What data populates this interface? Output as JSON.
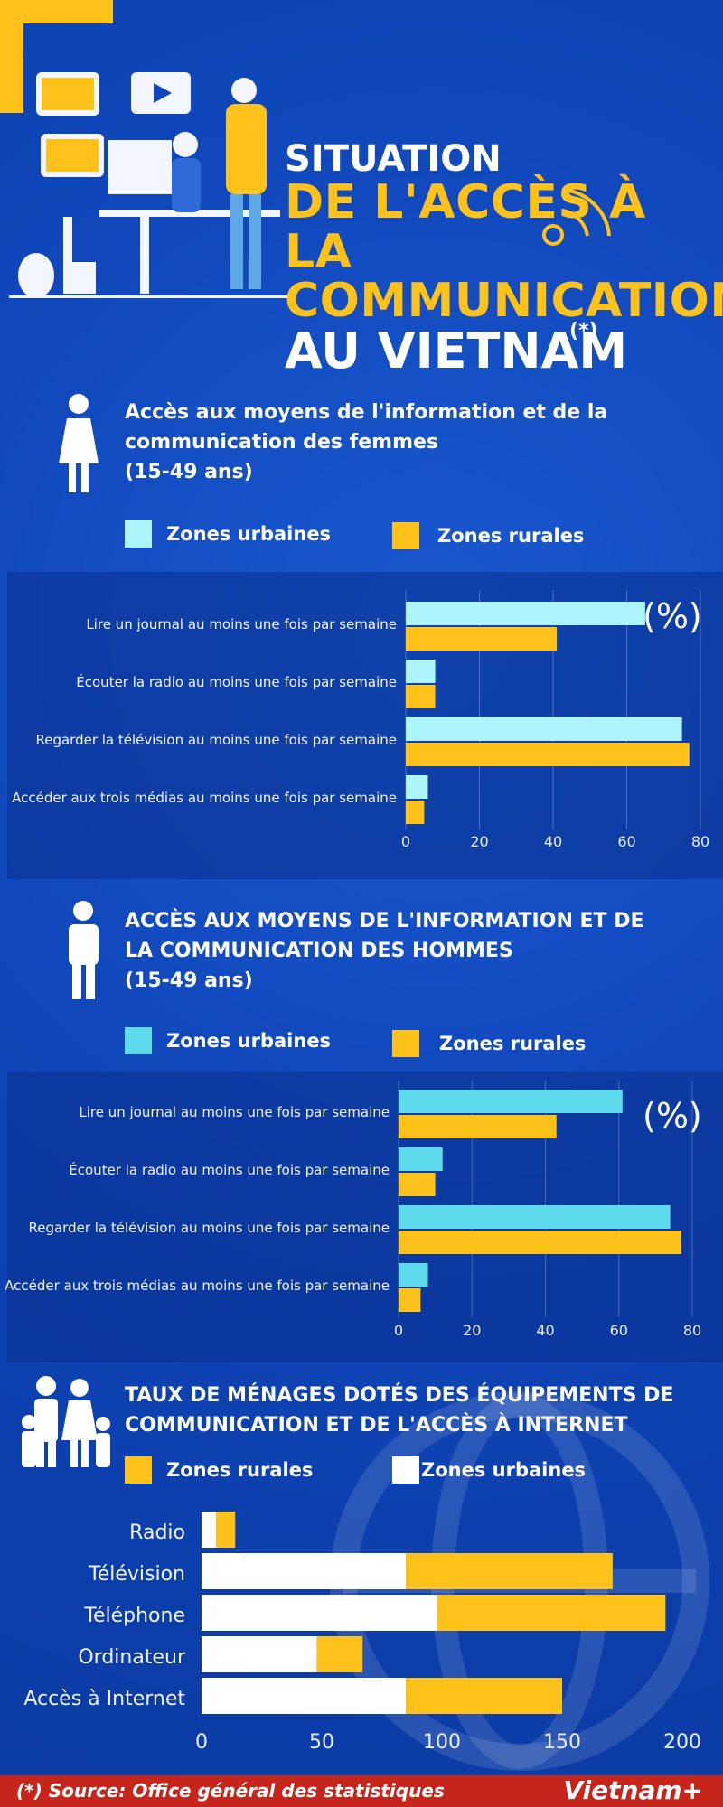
{
  "header": {
    "title_line1": "SITUATION",
    "title_line2": "DE L'ACCÈS À",
    "title_line3": "LA COMMUNICATION",
    "title_line4": "AU VIETNAM",
    "note_mark": "(*)"
  },
  "women": {
    "title": "Accès aux moyens de l'information et de la communication des femmes",
    "age": "(15-49 ans)",
    "legend_urban": "Zones urbaines",
    "legend_rural": "Zones rurales",
    "unit": "(%)"
  },
  "men": {
    "title": "ACCÈS AUX MOYENS DE L'INFORMATION ET DE LA COMMUNICATION DES HOMMES",
    "age": "(15-49 ans)",
    "legend_urban": "Zones urbaines",
    "legend_rural": "Zones rurales",
    "unit": "(%)"
  },
  "households": {
    "title": "TAUX DE MÉNAGES DOTÉS DES ÉQUIPEMENTS DE COMMUNICATION ET DE L'ACCÈS À INTERNET",
    "legend_rural": "Zones rurales",
    "legend_urban": "Zones urbaines"
  },
  "colors": {
    "urban_women": "#aef4fb",
    "urban_men": "#5fdbee",
    "rural": "#ffc21a",
    "white": "#ffffff",
    "accent_red": "#c5251b"
  },
  "chart_data": [
    {
      "type": "bar",
      "orientation": "horizontal",
      "categories": [
        "Lire un journal au moins une fois par semaine",
        "Écouter la radio au moins une fois par semaine",
        "Regarder la télévision au moins une fois par semaine",
        "Accéder aux trois médias au moins une fois par semaine"
      ],
      "series": [
        {
          "name": "Zones urbaines",
          "values": [
            65,
            8,
            75,
            6
          ]
        },
        {
          "name": "Zones rurales",
          "values": [
            41,
            8,
            77,
            5
          ]
        }
      ],
      "xlim": [
        0,
        80
      ],
      "ticks": [
        0,
        20,
        40,
        60,
        80
      ],
      "grid": true
    },
    {
      "type": "bar",
      "orientation": "horizontal",
      "categories": [
        "Lire un journal au moins une fois par semaine",
        "Écouter la radio au moins une fois par semaine",
        "Regarder la télévision au moins une fois par semaine",
        "Accéder aux trois médias au moins une fois par semaine"
      ],
      "series": [
        {
          "name": "Zones urbaines",
          "values": [
            61,
            12,
            74,
            8
          ]
        },
        {
          "name": "Zones rurales",
          "values": [
            43,
            10,
            77,
            6
          ]
        }
      ],
      "xlim": [
        0,
        80
      ],
      "ticks": [
        0,
        20,
        40,
        60,
        80
      ],
      "grid": true
    },
    {
      "type": "bar",
      "orientation": "horizontal",
      "stacked": true,
      "categories": [
        "Radio",
        "Télévision",
        "Téléphone",
        "Ordinateur",
        "Accès à Internet"
      ],
      "series": [
        {
          "name": "Zones urbaines",
          "values": [
            6,
            85,
            98,
            48,
            85
          ]
        },
        {
          "name": "Zones rurales",
          "values": [
            8,
            86,
            95,
            19,
            65
          ]
        }
      ],
      "xlim": [
        0,
        200
      ],
      "ticks": [
        0,
        50,
        100,
        150,
        200
      ],
      "grid": false
    }
  ],
  "footer": {
    "source": "(*) Source: Office général des statistiques",
    "brand": "Vietnam+"
  }
}
